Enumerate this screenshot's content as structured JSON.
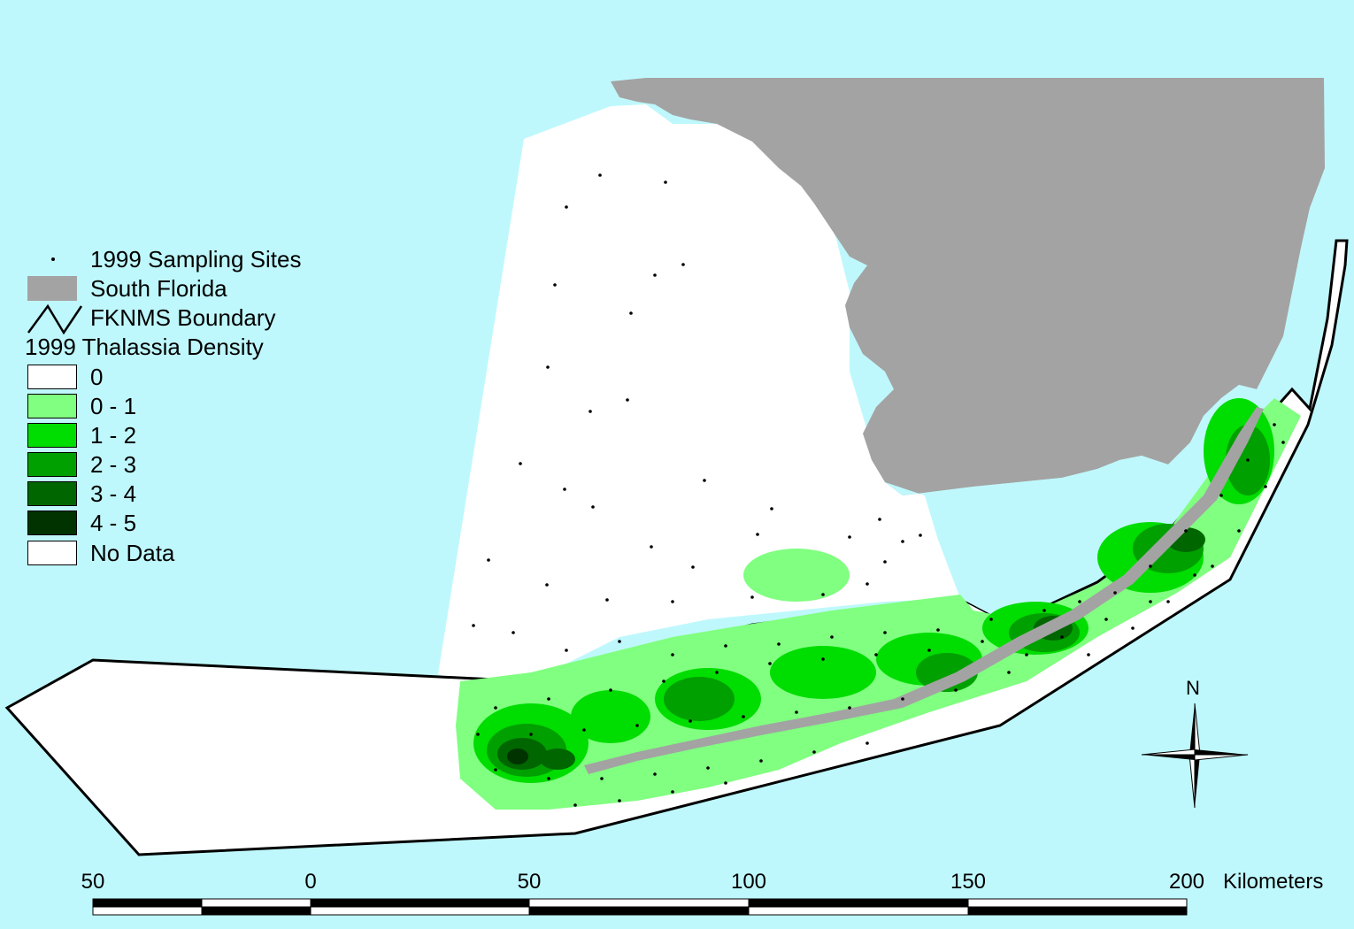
{
  "legend": {
    "sites_label": "1999 Sampling Sites",
    "land_label": "South Florida",
    "boundary_label": "FKNMS Boundary",
    "density_title": "1999 Thalassia Density",
    "classes": [
      {
        "label": "0",
        "color": "#ffffff"
      },
      {
        "label": "0 - 1",
        "color": "#80ff80"
      },
      {
        "label": "1 - 2",
        "color": "#00dd00"
      },
      {
        "label": "2 - 3",
        "color": "#00a000"
      },
      {
        "label": "3 - 4",
        "color": "#006600"
      },
      {
        "label": "4 - 5",
        "color": "#003300"
      },
      {
        "label": "No Data",
        "color": "#ffffff"
      }
    ]
  },
  "scalebar": {
    "ticks": [
      "50",
      "0",
      "50",
      "100",
      "150",
      "200"
    ],
    "units": "Kilometers"
  },
  "north_label": "N",
  "colors": {
    "water": "#bff8fc",
    "land": "#a3a3a3",
    "boundary": "#000000"
  }
}
